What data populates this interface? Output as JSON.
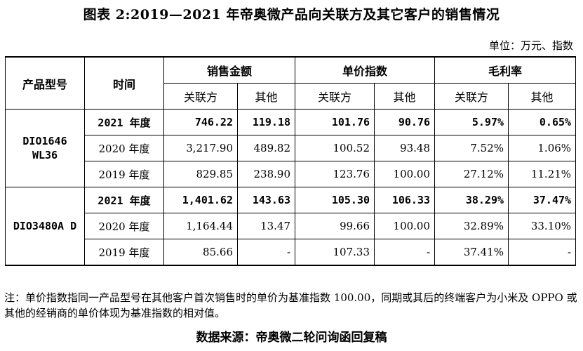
{
  "title": "图表 2:2019—2021 年帝奥微产品向关联方及其它客户的销售情况",
  "unit": "单位：万元、指数",
  "table": {
    "h_product": "产品型号",
    "h_time": "时间",
    "g_sales": "销售金额",
    "g_index": "单价指数",
    "g_margin": "毛利率",
    "sub": [
      "关联方",
      "其他",
      "关联方",
      "其他",
      "关联方",
      "其他"
    ],
    "groups": [
      {
        "product": "DIO1646 WL36",
        "rows": [
          {
            "period": "2021 年度",
            "values": [
              "746.22",
              "119.18",
              "101.76",
              "90.76",
              "5.97%",
              "0.65%"
            ],
            "bold": true
          },
          {
            "period": "2020 年度",
            "values": [
              "3,217.90",
              "489.82",
              "100.52",
              "93.48",
              "7.52%",
              "1.06%"
            ],
            "bold": false
          },
          {
            "period": "2019 年度",
            "values": [
              "829.85",
              "238.90",
              "123.76",
              "100.00",
              "27.12%",
              "11.21%"
            ],
            "bold": false
          }
        ]
      },
      {
        "product": "DIO3480A D",
        "rows": [
          {
            "period": "2021 年度",
            "values": [
              "1,401.62",
              "143.63",
              "105.30",
              "106.33",
              "38.29%",
              "37.47%"
            ],
            "bold": true
          },
          {
            "period": "2020 年度",
            "values": [
              "1,164.44",
              "13.47",
              "99.66",
              "100.00",
              "32.89%",
              "33.10%"
            ],
            "bold": false
          },
          {
            "period": "2019 年度",
            "values": [
              "85.66",
              "-",
              "107.33",
              "-",
              "37.41%",
              "-"
            ],
            "bold": false
          }
        ]
      }
    ]
  },
  "note": "注：单价指数指同一产品型号在其他客户首次销售时的单价为基准指数 100.00，同期或其后的终端客户为小米及 OPPO 或其他的经销商的单价体现为基准指数的相对值。",
  "source": "数据来源：帝奥微二轮问询函回复稿"
}
